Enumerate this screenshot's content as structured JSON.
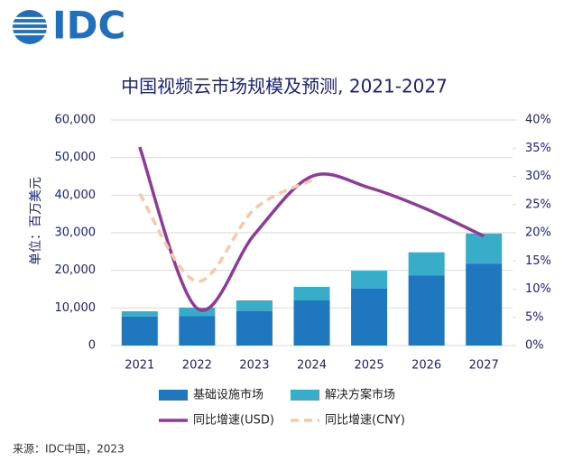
{
  "logo": "IDC",
  "source": "来源：IDC中国，2023",
  "chart_data": {
    "type": "bar",
    "title": "中国视频云市场规模及预测, 2021-2027",
    "ylabel": "单位：百万美元",
    "categories": [
      "2021",
      "2022",
      "2023",
      "2024",
      "2025",
      "2026",
      "2027"
    ],
    "stacked": true,
    "grid": true,
    "ylim": [
      0,
      60000
    ],
    "yticks": [
      0,
      {
        "value": 10000,
        "label": "10,000"
      },
      {
        "value": 20000,
        "label": "20,000"
      },
      {
        "value": 30000,
        "label": "30,000"
      },
      {
        "value": 40000,
        "label": "40,000"
      },
      {
        "value": 50000,
        "label": "50,000"
      },
      {
        "value": 60000,
        "label": "60,000"
      }
    ],
    "y2lim": [
      0,
      40
    ],
    "y2ticks": [
      {
        "value": 0,
        "label": "0%"
      },
      {
        "value": 5,
        "label": "5%"
      },
      {
        "value": 10,
        "label": "10%"
      },
      {
        "value": 15,
        "label": "15%"
      },
      {
        "value": 20,
        "label": "20%"
      },
      {
        "value": 25,
        "label": "25%"
      },
      {
        "value": 30,
        "label": "30%"
      },
      {
        "value": 35,
        "label": "35%"
      },
      {
        "value": 40,
        "label": "40%"
      }
    ],
    "series": [
      {
        "name": "基础设施市场",
        "type": "bar",
        "color": "#1f77c0",
        "values": [
          7700,
          7800,
          9200,
          12000,
          15200,
          18600,
          21800
        ]
      },
      {
        "name": "解决方案市场",
        "type": "bar",
        "color": "#37adc9",
        "values": [
          1400,
          2300,
          2800,
          3600,
          4700,
          6200,
          8000
        ]
      },
      {
        "name": "同比增速(USD)",
        "type": "line",
        "axis": "y2",
        "color": "#8e3a96",
        "values": [
          35.2,
          6.6,
          19.7,
          30,
          28,
          24.2,
          19.4
        ]
      },
      {
        "name": "同比增速(CNY)",
        "type": "line",
        "axis": "y2",
        "dashed": true,
        "color": "#f8c9a8",
        "values": [
          26.9,
          11.4,
          24.2,
          29.3,
          null,
          null,
          null
        ]
      }
    ]
  }
}
